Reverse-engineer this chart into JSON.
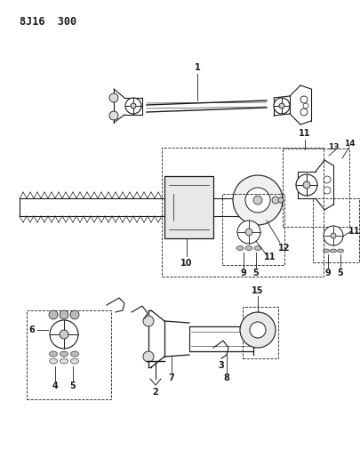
{
  "title": "8J16  300",
  "bg": "#ffffff",
  "fg": "#1a1a1a",
  "title_font": 8.5,
  "figw": 4.05,
  "figh": 5.33,
  "dpi": 100
}
